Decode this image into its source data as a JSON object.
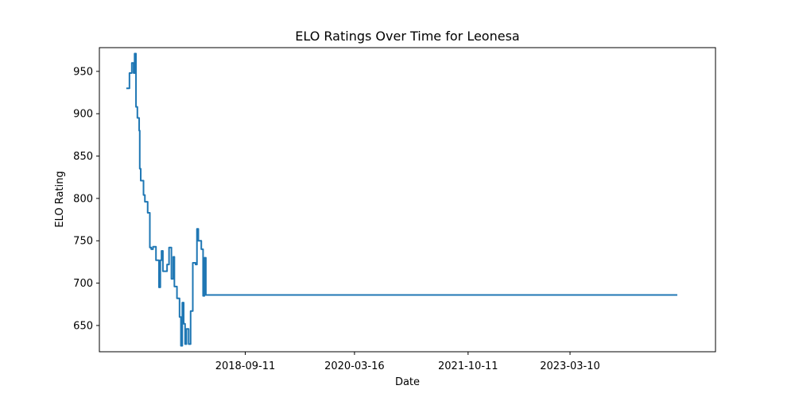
{
  "chart_data": {
    "type": "line",
    "title": "ELO Ratings Over Time for Leonesa",
    "xlabel": "Date",
    "ylabel": "ELO Rating",
    "x_ticks": [
      "2018-09-11",
      "2020-03-16",
      "2021-10-11",
      "2023-03-10"
    ],
    "y_ticks": [
      650,
      700,
      750,
      800,
      850,
      900,
      950
    ],
    "xlim": [
      "2016-09-04",
      "2025-03-14"
    ],
    "ylim": [
      619,
      978
    ],
    "grid": false,
    "series": [
      {
        "color": "#1f77b4",
        "points": [
          [
            "2017-01-18",
            930
          ],
          [
            "2017-02-03",
            930
          ],
          [
            "2017-02-03",
            948
          ],
          [
            "2017-02-15",
            948
          ],
          [
            "2017-02-15",
            960
          ],
          [
            "2017-02-24",
            960
          ],
          [
            "2017-02-24",
            948
          ],
          [
            "2017-03-01",
            948
          ],
          [
            "2017-03-01",
            971
          ],
          [
            "2017-03-08",
            971
          ],
          [
            "2017-03-08",
            908
          ],
          [
            "2017-03-15",
            908
          ],
          [
            "2017-03-15",
            895
          ],
          [
            "2017-03-24",
            895
          ],
          [
            "2017-03-24",
            880
          ],
          [
            "2017-03-27",
            880
          ],
          [
            "2017-03-27",
            835
          ],
          [
            "2017-04-01",
            835
          ],
          [
            "2017-04-01",
            821
          ],
          [
            "2017-04-15",
            821
          ],
          [
            "2017-04-15",
            804
          ],
          [
            "2017-04-22",
            804
          ],
          [
            "2017-04-22",
            796
          ],
          [
            "2017-05-06",
            796
          ],
          [
            "2017-05-06",
            783
          ],
          [
            "2017-05-17",
            783
          ],
          [
            "2017-05-17",
            742
          ],
          [
            "2017-05-24",
            742
          ],
          [
            "2017-05-24",
            740
          ],
          [
            "2017-06-02",
            740
          ],
          [
            "2017-06-02",
            743
          ],
          [
            "2017-06-17",
            743
          ],
          [
            "2017-06-17",
            727
          ],
          [
            "2017-07-02",
            727
          ],
          [
            "2017-07-02",
            695
          ],
          [
            "2017-07-09",
            695
          ],
          [
            "2017-07-09",
            727
          ],
          [
            "2017-07-15",
            727
          ],
          [
            "2017-07-15",
            738
          ],
          [
            "2017-07-22",
            738
          ],
          [
            "2017-07-22",
            714
          ],
          [
            "2017-08-12",
            714
          ],
          [
            "2017-08-12",
            722
          ],
          [
            "2017-08-22",
            722
          ],
          [
            "2017-08-22",
            742
          ],
          [
            "2017-09-03",
            742
          ],
          [
            "2017-09-03",
            705
          ],
          [
            "2017-09-12",
            705
          ],
          [
            "2017-09-12",
            731
          ],
          [
            "2017-09-18",
            731
          ],
          [
            "2017-09-18",
            696
          ],
          [
            "2017-10-01",
            696
          ],
          [
            "2017-10-01",
            682
          ],
          [
            "2017-10-14",
            682
          ],
          [
            "2017-10-14",
            660
          ],
          [
            "2017-10-21",
            660
          ],
          [
            "2017-10-21",
            626
          ],
          [
            "2017-10-28",
            626
          ],
          [
            "2017-10-28",
            677
          ],
          [
            "2017-11-04",
            677
          ],
          [
            "2017-11-04",
            652
          ],
          [
            "2017-11-11",
            652
          ],
          [
            "2017-11-11",
            628
          ],
          [
            "2017-11-18",
            628
          ],
          [
            "2017-11-18",
            646
          ],
          [
            "2017-11-29",
            646
          ],
          [
            "2017-11-29",
            628
          ],
          [
            "2017-12-09",
            628
          ],
          [
            "2017-12-09",
            667
          ],
          [
            "2017-12-20",
            667
          ],
          [
            "2017-12-20",
            724
          ],
          [
            "2018-01-03",
            724
          ],
          [
            "2018-01-03",
            722
          ],
          [
            "2018-01-10",
            722
          ],
          [
            "2018-01-10",
            764
          ],
          [
            "2018-01-17",
            764
          ],
          [
            "2018-01-17",
            750
          ],
          [
            "2018-02-01",
            750
          ],
          [
            "2018-02-01",
            740
          ],
          [
            "2018-02-10",
            740
          ],
          [
            "2018-02-10",
            685
          ],
          [
            "2018-02-17",
            685
          ],
          [
            "2018-02-17",
            730
          ],
          [
            "2018-02-24",
            730
          ],
          [
            "2018-02-24",
            686
          ],
          [
            "2024-09-02",
            686
          ]
        ]
      }
    ]
  }
}
